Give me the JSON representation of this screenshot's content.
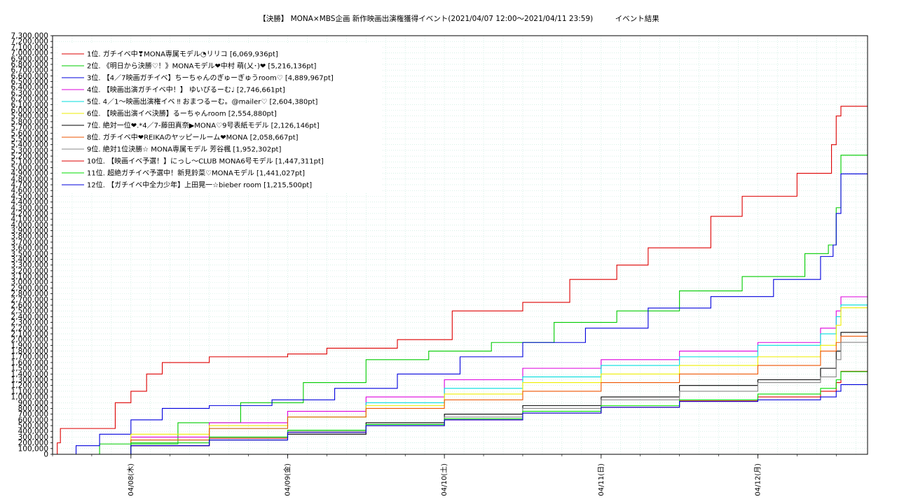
{
  "chart_data": {
    "type": "line",
    "title": "【決勝】 MONA×MBS企画 新作映画出演権獲得イベント(2021/04/07 12:00～2021/04/11 23:59)　　　イベント結果",
    "xlabel": "",
    "ylabel": "",
    "x_ticks": [
      "04/08(木)",
      "04/09(金)",
      "04/10(土)",
      "04/11(日)",
      "04/12(月)"
    ],
    "x_start": "2021/04/07 12:00",
    "x_end": "2021/04/12 01:00",
    "ylim": [
      0,
      7300000
    ],
    "ytick_step": 100000,
    "grid": true,
    "legend_position": "top-left",
    "series": [
      {
        "name": "1位. ガチイベ中❣MONA専属モデル◔リリコ [6,069,936pt]",
        "color": "#dd0000",
        "x": [
          0,
          0.03,
          0.05,
          0.4,
          0.5,
          0.6,
          0.7,
          1.0,
          1.5,
          1.75,
          2.2,
          2.55,
          3.0,
          3.3,
          3.6,
          3.8,
          4.2,
          4.4,
          4.75,
          4.97,
          5.0,
          5.03,
          5.1,
          5.2
        ],
        "values": [
          0,
          200000,
          450000,
          900000,
          1100000,
          1400000,
          1600000,
          1700000,
          1750000,
          1850000,
          2000000,
          2500000,
          2650000,
          3050000,
          3300000,
          3600000,
          4150000,
          4500000,
          4900000,
          5400000,
          5900000,
          6069936,
          6069936,
          6069936
        ]
      },
      {
        "name": "2位. 《明日から決勝♡！》MONAモデル❤中村 萌(乂･)❤ [5,216,136pt]",
        "color": "#00cc00",
        "x": [
          0,
          0.3,
          0.8,
          1.2,
          1.6,
          2.0,
          2.4,
          2.8,
          3.2,
          3.6,
          4.0,
          4.4,
          4.8,
          4.95,
          5.0,
          5.03,
          5.2
        ],
        "values": [
          0,
          180000,
          550000,
          900000,
          1250000,
          1650000,
          1800000,
          1950000,
          2300000,
          2500000,
          2850000,
          3100000,
          3500000,
          3650000,
          4300000,
          5216136,
          5216136
        ]
      },
      {
        "name": "3位. 【4／7映画ガチイベ】ちーちゃんのぎゅーぎゅうroom♡ [4,889,967pt]",
        "color": "#0000dd",
        "x": [
          0,
          0.15,
          0.3,
          0.5,
          0.7,
          1.0,
          1.4,
          1.8,
          2.2,
          2.6,
          3.0,
          3.4,
          3.8,
          4.2,
          4.6,
          4.9,
          4.98,
          5.0,
          5.03,
          5.2
        ],
        "values": [
          0,
          150000,
          350000,
          600000,
          800000,
          850000,
          950000,
          1150000,
          1400000,
          1700000,
          1950000,
          2200000,
          2550000,
          2750000,
          3050000,
          3450000,
          3650000,
          4200000,
          4889967,
          4889967
        ]
      },
      {
        "name": "4位. 【映画出演ガチイベ中！】 ゆいぴるーむ♩ [2,746,661pt]",
        "color": "#dd00dd",
        "x": [
          0,
          0.5,
          1.0,
          1.5,
          2.0,
          2.5,
          3.0,
          3.5,
          4.0,
          4.5,
          4.9,
          5.0,
          5.03,
          5.2
        ],
        "values": [
          0,
          300000,
          550000,
          750000,
          1000000,
          1300000,
          1500000,
          1650000,
          1800000,
          1950000,
          2200000,
          2500000,
          2746661,
          2746661
        ]
      },
      {
        "name": "5位. 4／1～映画出演権イベ ‼ おまつるーむ。@mailer♡ [2,604,380pt]",
        "color": "#00dddd",
        "x": [
          0,
          0.5,
          1.0,
          1.5,
          2.0,
          2.5,
          3.0,
          3.5,
          4.0,
          4.5,
          4.9,
          5.0,
          5.03,
          5.2
        ],
        "values": [
          0,
          250000,
          450000,
          650000,
          900000,
          1150000,
          1350000,
          1550000,
          1700000,
          1900000,
          2100000,
          2400000,
          2604380,
          2604380
        ]
      },
      {
        "name": "6位. 【映画出演イベ決勝】るーちゃんroom [2,554,880pt]",
        "color": "#eeee00",
        "x": [
          0,
          0.5,
          1.0,
          1.5,
          2.0,
          2.5,
          3.0,
          3.5,
          4.0,
          4.5,
          4.9,
          5.0,
          5.03,
          5.2
        ],
        "values": [
          0,
          350000,
          500000,
          650000,
          850000,
          1050000,
          1250000,
          1400000,
          1550000,
          1700000,
          1900000,
          2250000,
          2554880,
          2554880
        ]
      },
      {
        "name": "7位. 絶対一位❤.*4／7-藤田真奈▶MONA♡9号表紙モデル [2,126,146pt]",
        "color": "#000000",
        "x": [
          0,
          0.5,
          1.0,
          1.5,
          2.0,
          2.5,
          3.0,
          3.5,
          4.0,
          4.5,
          4.9,
          5.0,
          5.03,
          5.2
        ],
        "values": [
          0,
          150000,
          250000,
          350000,
          550000,
          700000,
          850000,
          1000000,
          1200000,
          1300000,
          1500000,
          1800000,
          2126146,
          2126146
        ]
      },
      {
        "name": "8位. ガチイベ中❤REIKAのヤッピールーム❤MONA [2,058,667pt]",
        "color": "#ee5500",
        "x": [
          0,
          0.5,
          1.0,
          1.5,
          2.0,
          2.5,
          3.0,
          3.5,
          4.0,
          4.5,
          4.9,
          5.0,
          5.03,
          5.2
        ],
        "values": [
          0,
          250000,
          450000,
          650000,
          800000,
          950000,
          1100000,
          1250000,
          1400000,
          1550000,
          1800000,
          1950000,
          2058667,
          2058667
        ]
      },
      {
        "name": "9位. 絶対1位決勝☆ MONA専属モデル 芳谷楓 [1,952,302pt]",
        "color": "#888888",
        "x": [
          0,
          0.5,
          1.0,
          1.5,
          2.0,
          2.5,
          3.0,
          3.5,
          4.0,
          4.5,
          4.9,
          5.0,
          5.03,
          5.2
        ],
        "values": [
          0,
          200000,
          300000,
          400000,
          500000,
          650000,
          800000,
          950000,
          1100000,
          1250000,
          1350000,
          1650000,
          1952302,
          1952302
        ]
      },
      {
        "name": "10位. 【映画イベ予選！】にっし～CLUB MONA6号モデル [1,447,311pt]",
        "color": "#dd0000",
        "x": [
          0,
          0.5,
          1.0,
          1.5,
          2.0,
          2.5,
          3.0,
          3.5,
          4.0,
          4.5,
          4.9,
          5.0,
          5.03,
          5.2
        ],
        "values": [
          0,
          150000,
          280000,
          380000,
          500000,
          600000,
          720000,
          820000,
          930000,
          1000000,
          1100000,
          1250000,
          1447311,
          1447311
        ]
      },
      {
        "name": "11位. 超絶ガチイベ予選中！新見鈴菜♡MONAモデル [1,441,027pt]",
        "color": "#00dd00",
        "x": [
          0,
          0.5,
          1.0,
          1.5,
          2.0,
          2.5,
          3.0,
          3.5,
          4.0,
          4.5,
          4.9,
          5.0,
          5.03,
          5.2
        ],
        "values": [
          0,
          200000,
          300000,
          420000,
          520000,
          620000,
          750000,
          850000,
          950000,
          1050000,
          1150000,
          1300000,
          1441027,
          1441027
        ]
      },
      {
        "name": "12位. 【ガチイベ中全力少年】上田晃一☆bieber room [1,215,500pt]",
        "color": "#0000dd",
        "x": [
          0,
          0.5,
          1.0,
          1.5,
          2.0,
          2.5,
          3.0,
          3.5,
          4.0,
          4.5,
          4.9,
          5.0,
          5.03,
          5.2
        ],
        "values": [
          0,
          150000,
          250000,
          380000,
          500000,
          600000,
          720000,
          820000,
          920000,
          950000,
          1000000,
          1100000,
          1215500,
          1215500
        ]
      }
    ]
  }
}
